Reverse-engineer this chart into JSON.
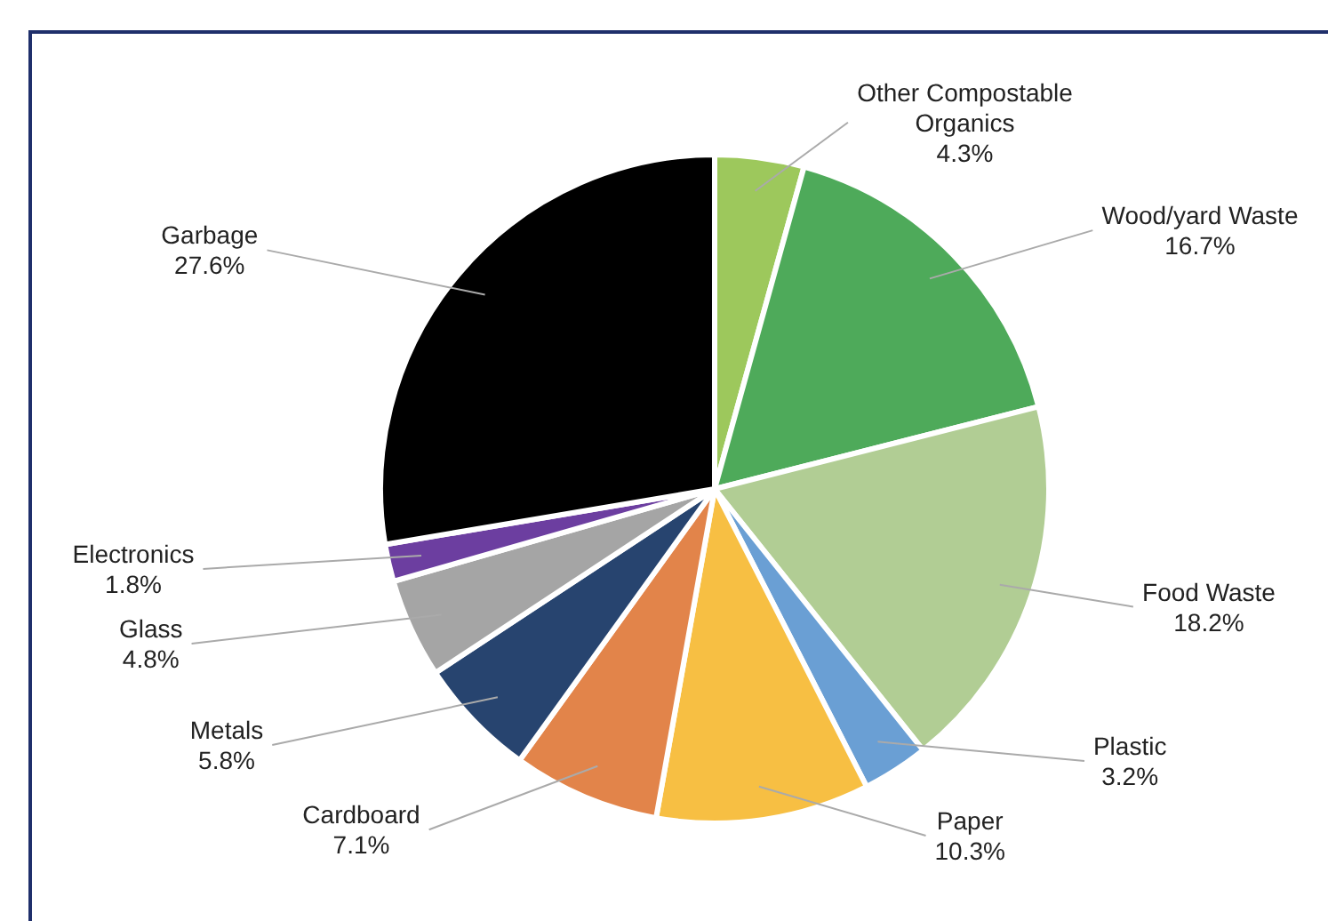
{
  "chart_data": {
    "type": "pie",
    "categories": [
      "Other Compostable\nOrganics",
      "Wood/yard Waste",
      "Food Waste",
      "Plastic",
      "Paper",
      "Cardboard",
      "Metals",
      "Glass",
      "Electronics",
      "Garbage"
    ],
    "values": [
      4.3,
      16.7,
      18.2,
      3.2,
      10.3,
      7.1,
      5.8,
      4.8,
      1.8,
      27.6
    ],
    "value_labels": [
      "4.3%",
      "16.7%",
      "18.2%",
      "3.2%",
      "10.3%",
      "7.1%",
      "5.8%",
      "4.8%",
      "1.8%",
      "27.6%"
    ],
    "colors": [
      "#9dc85c",
      "#4eaa5a",
      "#b1cd94",
      "#6a9fd4",
      "#f7bf43",
      "#e2844a",
      "#27446f",
      "#a5a5a5",
      "#6c3ea0",
      "#000000"
    ],
    "legend": false
  }
}
